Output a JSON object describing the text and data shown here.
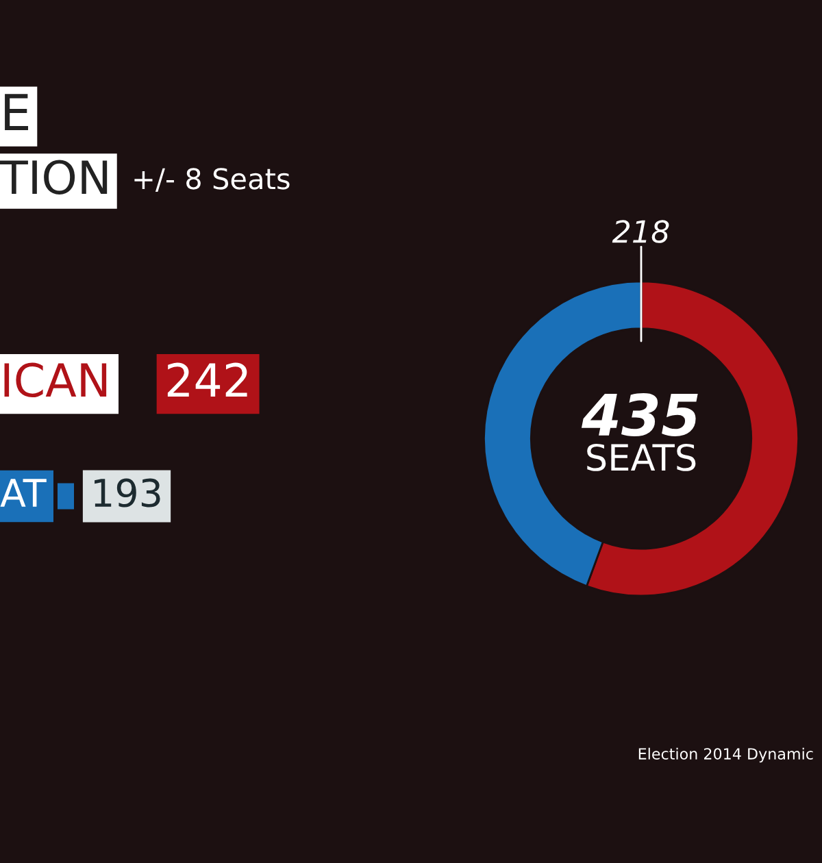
{
  "chart_data": {
    "type": "donut",
    "title": "E",
    "subtitle": "TION",
    "categories": [
      "ICAN",
      "AT"
    ],
    "values": [
      242,
      193
    ],
    "colors": [
      "#b01218",
      "#1a70b8"
    ],
    "data_labels": true,
    "legend": "left",
    "annotations": [
      "+/- 8 Seats",
      "218",
      "435",
      "SEATS",
      "Election 2014 Dynamic"
    ]
  }
}
